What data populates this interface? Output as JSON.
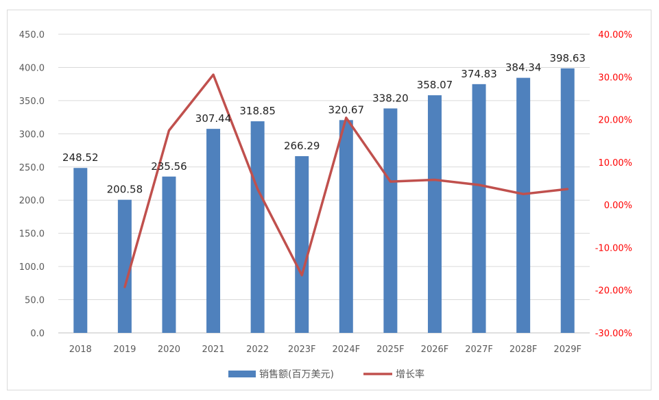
{
  "chart_data": {
    "type": "bar",
    "categories": [
      "2018",
      "2019",
      "2020",
      "2021",
      "2022",
      "2023F",
      "2024F",
      "2025F",
      "2026F",
      "2027F",
      "2028F",
      "2029F"
    ],
    "series": [
      {
        "name": "销售额(百万美元)",
        "type": "bar",
        "axis": "left",
        "values": [
          248.52,
          200.58,
          235.56,
          307.44,
          318.85,
          266.29,
          320.67,
          338.2,
          358.07,
          374.83,
          384.34,
          398.63
        ],
        "labels": [
          "248.52",
          "200.58",
          "235.56",
          "307.44",
          "318.85",
          "266.29",
          "320.67",
          "338.20",
          "358.07",
          "374.83",
          "384.34",
          "398.63"
        ]
      },
      {
        "name": "增长率",
        "type": "line",
        "axis": "right",
        "values": [
          null,
          -19.29,
          17.44,
          30.52,
          3.71,
          -16.49,
          20.42,
          5.47,
          5.88,
          4.68,
          2.54,
          3.72
        ]
      }
    ],
    "y_left": {
      "min": 0,
      "max": 450,
      "ticks": [
        0,
        50,
        100,
        150,
        200,
        250,
        300,
        350,
        400,
        450
      ],
      "tick_labels": [
        "0.0",
        "50.0",
        "100.0",
        "150.0",
        "200.0",
        "250.0",
        "300.0",
        "350.0",
        "400.0",
        "450.0"
      ]
    },
    "y_right": {
      "min": -30,
      "max": 40,
      "ticks": [
        -30,
        -20,
        -10,
        0,
        10,
        20,
        30,
        40
      ],
      "tick_labels": [
        "-30.00%",
        "-20.00%",
        "-10.00%",
        "0.00%",
        "10.00%",
        "20.00%",
        "30.00%",
        "40.00%"
      ]
    },
    "grid": true,
    "legend_position": "bottom",
    "colors": {
      "bar": "#4f81bd",
      "line": "#c0504d",
      "right_axis": "#ff0000"
    }
  }
}
